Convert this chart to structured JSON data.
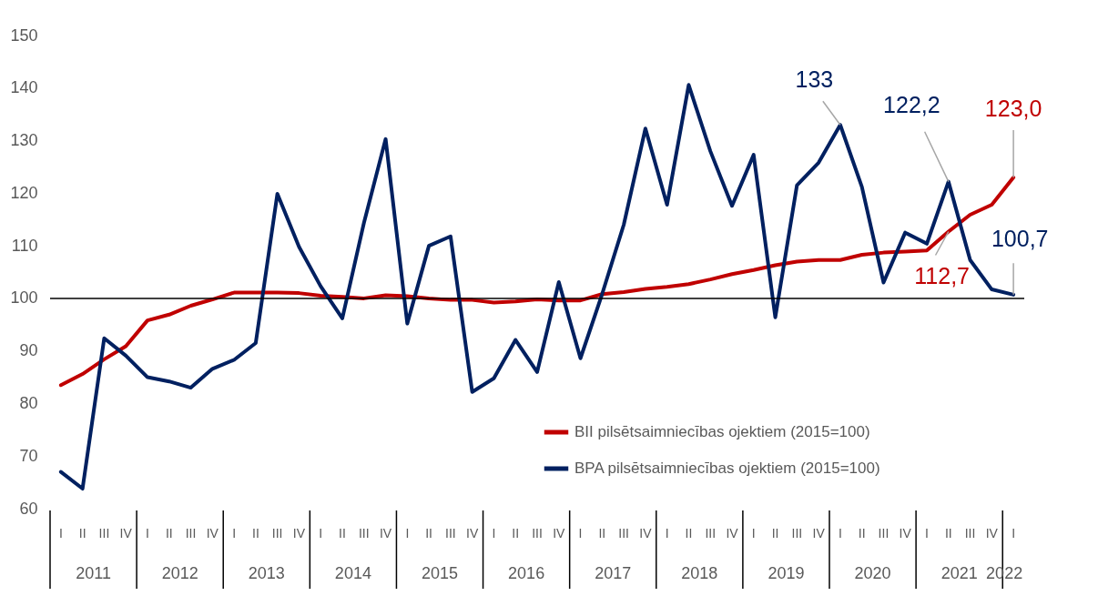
{
  "chart_data": {
    "type": "line",
    "categories": [
      "I",
      "II",
      "III",
      "IV",
      "I",
      "II",
      "III",
      "IV",
      "I",
      "II",
      "III",
      "IV",
      "I",
      "II",
      "III",
      "IV",
      "I",
      "II",
      "III",
      "IV",
      "I",
      "II",
      "III",
      "IV",
      "I",
      "II",
      "III",
      "IV",
      "I",
      "II",
      "III",
      "IV",
      "I",
      "II",
      "III",
      "IV",
      "I",
      "II",
      "III",
      "IV",
      "I",
      "II",
      "III",
      "IV",
      "I"
    ],
    "series": [
      {
        "name": "BII pilsētsaimniecības ojektiem (2015=100)",
        "color": "#c00000",
        "values": [
          83.5,
          85.6,
          88.4,
          90.9,
          95.8,
          96.9,
          98.6,
          99.8,
          101.1,
          101.1,
          101.1,
          101.0,
          100.5,
          100.3,
          100.0,
          100.6,
          100.4,
          100.0,
          99.7,
          99.7,
          99.2,
          99.4,
          99.8,
          99.6,
          99.6,
          100.8,
          101.2,
          101.8,
          102.2,
          102.7,
          103.6,
          104.6,
          105.4,
          106.3,
          107.0,
          107.3,
          107.3,
          108.3,
          108.7,
          108.9,
          109.1,
          112.7,
          115.9,
          117.8,
          123.0
        ],
        "value_labels": [
          null,
          null,
          null,
          null,
          null,
          null,
          null,
          null,
          null,
          null,
          null,
          null,
          null,
          null,
          null,
          null,
          null,
          null,
          null,
          null,
          null,
          null,
          null,
          null,
          null,
          null,
          null,
          null,
          null,
          null,
          null,
          null,
          null,
          null,
          null,
          null,
          null,
          null,
          null,
          null,
          null,
          "112,7",
          null,
          null,
          "123,0"
        ]
      },
      {
        "name": "BPA pilsētsaimniecības ojektiem (2015=100)",
        "color": "#002060",
        "values": [
          67.0,
          63.8,
          92.4,
          89.1,
          85.0,
          84.2,
          83.0,
          86.6,
          88.3,
          91.5,
          119.9,
          109.8,
          102.3,
          96.2,
          114.4,
          130.3,
          95.2,
          110.0,
          111.8,
          82.2,
          84.8,
          92.1,
          86.0,
          103.1,
          88.6,
          100.8,
          114.0,
          132.3,
          117.8,
          140.6,
          128.0,
          117.6,
          127.3,
          96.4,
          121.5,
          125.8,
          133,
          121.2,
          103.0,
          112.5,
          110.4,
          122.2,
          107.3,
          101.7,
          100.7
        ],
        "value_labels": [
          null,
          null,
          null,
          null,
          null,
          null,
          null,
          null,
          null,
          null,
          null,
          null,
          null,
          null,
          null,
          null,
          null,
          null,
          null,
          null,
          null,
          null,
          null,
          null,
          null,
          null,
          null,
          null,
          null,
          null,
          null,
          null,
          null,
          null,
          null,
          null,
          "133",
          null,
          null,
          null,
          null,
          "122,2",
          null,
          null,
          "100,7"
        ]
      }
    ],
    "ylim": [
      60,
      150
    ],
    "yticks": [
      60,
      70,
      80,
      90,
      100,
      110,
      120,
      130,
      140,
      150
    ],
    "ref_lines": [
      {
        "axis": "y",
        "value": 100,
        "color": "#000000"
      }
    ],
    "annotations": [
      "2011",
      "2012",
      "2013",
      "2014",
      "2015",
      "2016",
      "2017",
      "2018",
      "2019",
      "2020",
      "2021",
      "2022"
    ],
    "legend": "bottom right",
    "grid": false
  }
}
